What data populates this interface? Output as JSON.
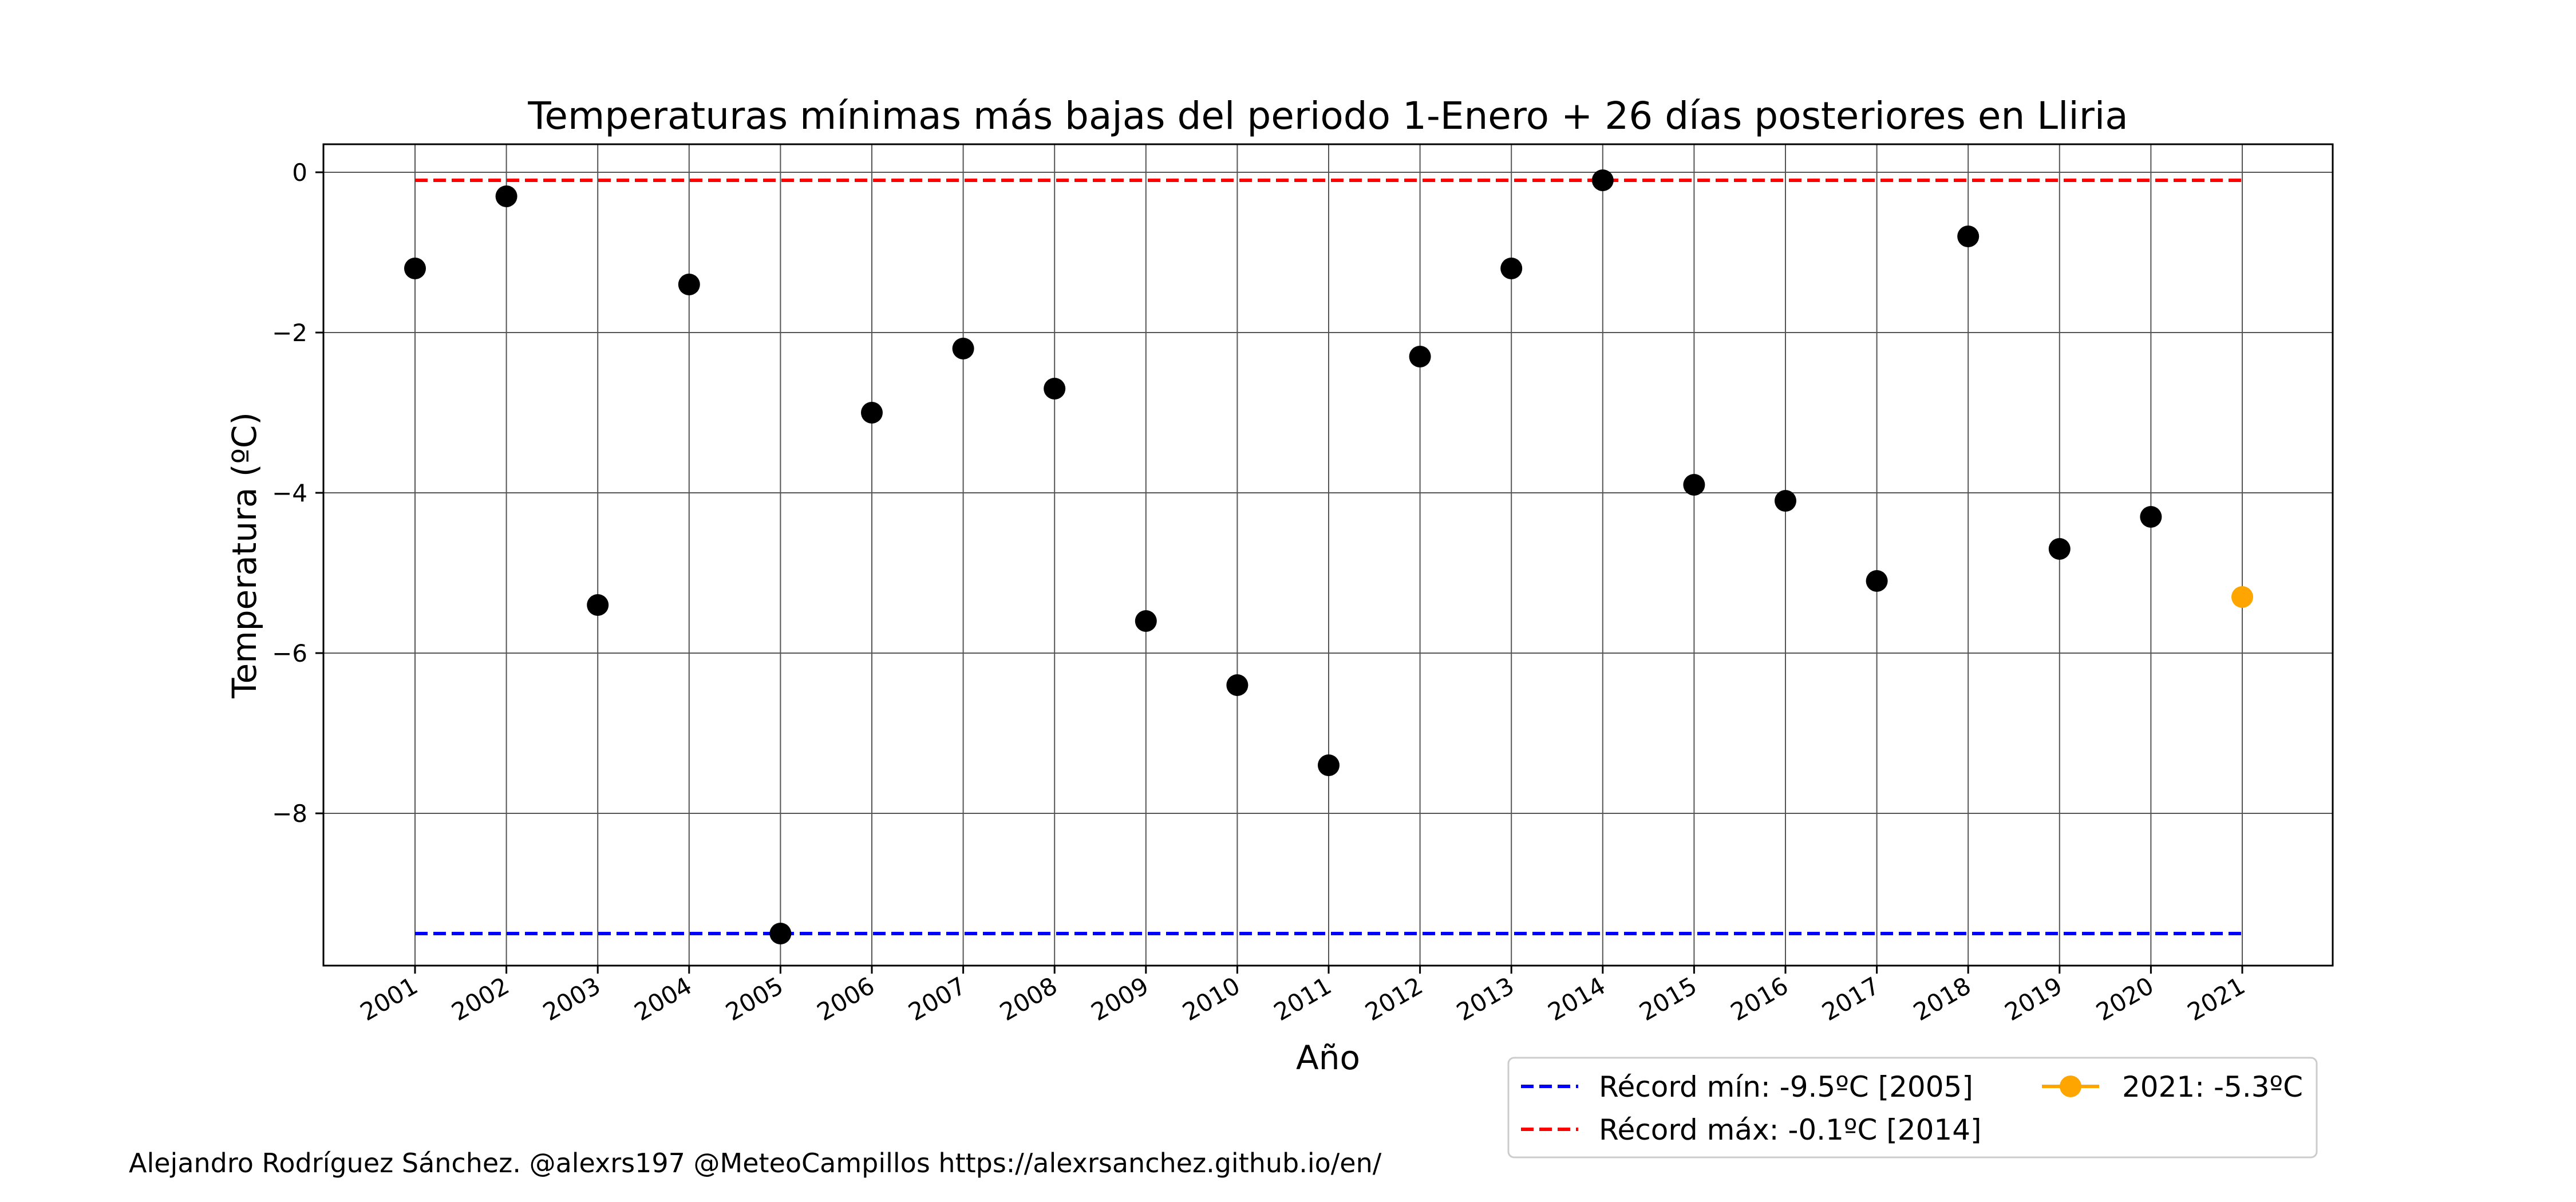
{
  "chart_data": {
    "type": "scatter",
    "title": "Temperaturas mínimas más bajas del periodo 1-Enero + 26 días posteriores en Lliria",
    "xlabel": "Año",
    "ylabel": "Temperatura (ºC)",
    "x_categories": [
      "2001",
      "2002",
      "2003",
      "2004",
      "2005",
      "2006",
      "2007",
      "2008",
      "2009",
      "2010",
      "2011",
      "2012",
      "2013",
      "2014",
      "2015",
      "2016",
      "2017",
      "2018",
      "2019",
      "2020",
      "2021"
    ],
    "y_ticks": [
      0,
      -2,
      -4,
      -6,
      -8
    ],
    "y_tick_labels": [
      "0",
      "−2",
      "−4",
      "−6",
      "−8"
    ],
    "ylim": [
      -9.9,
      0.35
    ],
    "grid": true,
    "series": [
      {
        "points": [
          {
            "x": "2001",
            "y": -1.2
          },
          {
            "x": "2002",
            "y": -0.3
          },
          {
            "x": "2003",
            "y": -5.4
          },
          {
            "x": "2004",
            "y": -1.4
          },
          {
            "x": "2005",
            "y": -9.5
          },
          {
            "x": "2006",
            "y": -3.0
          },
          {
            "x": "2007",
            "y": -2.2
          },
          {
            "x": "2008",
            "y": -2.7
          },
          {
            "x": "2009",
            "y": -5.6
          },
          {
            "x": "2010",
            "y": -6.4
          },
          {
            "x": "2011",
            "y": -7.4
          },
          {
            "x": "2012",
            "y": -2.3
          },
          {
            "x": "2013",
            "y": -1.2
          },
          {
            "x": "2014",
            "y": -0.1
          },
          {
            "x": "2015",
            "y": -3.9
          },
          {
            "x": "2016",
            "y": -4.1
          },
          {
            "x": "2017",
            "y": -5.1
          },
          {
            "x": "2018",
            "y": -0.8
          },
          {
            "x": "2019",
            "y": -4.7
          },
          {
            "x": "2020",
            "y": -4.3
          }
        ],
        "color": "#000000"
      },
      {
        "name": "2021: -5.3ºC",
        "points": [
          {
            "x": "2021",
            "y": -5.3
          }
        ],
        "color": "#FFA500"
      }
    ],
    "reference_lines": [
      {
        "name": "Récord mín: -9.5ºC [2005]",
        "y": -9.5,
        "color": "#0000FF",
        "style": "dashed"
      },
      {
        "name": "Récord máx: -0.1ºC [2014]",
        "y": -0.1,
        "color": "#FF0000",
        "style": "dashed"
      }
    ],
    "legend": {
      "placement": "below-right",
      "entries": [
        {
          "label": "Récord mín: -9.5ºC [2005]",
          "color": "#0000FF",
          "marker": "dashed-line"
        },
        {
          "label": "Récord máx: -0.1ºC [2014]",
          "color": "#FF0000",
          "marker": "dashed-line"
        },
        {
          "label": "2021: -5.3ºC",
          "color": "#FFA500",
          "marker": "line-dot"
        }
      ]
    }
  },
  "credit": "Alejandro Rodríguez Sánchez. @alexrs197 @MeteoCampillos   https://alexrsanchez.github.io/en/"
}
